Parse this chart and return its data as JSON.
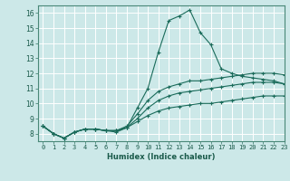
{
  "xlabel": "Humidex (Indice chaleur)",
  "bg_color": "#cce8e8",
  "grid_color": "#b0d0d0",
  "line_color": "#1a6b5a",
  "xlim": [
    -0.5,
    23
  ],
  "ylim": [
    7.5,
    16.5
  ],
  "xticks": [
    0,
    1,
    2,
    3,
    4,
    5,
    6,
    7,
    8,
    9,
    10,
    11,
    12,
    13,
    14,
    15,
    16,
    17,
    18,
    19,
    20,
    21,
    22,
    23
  ],
  "yticks": [
    8,
    9,
    10,
    11,
    12,
    13,
    14,
    15,
    16
  ],
  "series": [
    [
      8.5,
      8.0,
      7.7,
      8.1,
      8.3,
      8.3,
      8.2,
      8.1,
      8.4,
      9.7,
      11.0,
      13.4,
      15.5,
      15.8,
      16.2,
      14.7,
      13.9,
      12.3,
      12.0,
      11.8,
      11.7,
      11.6,
      11.5,
      11.3
    ],
    [
      8.5,
      8.0,
      7.7,
      8.1,
      8.3,
      8.3,
      8.2,
      8.2,
      8.5,
      9.3,
      10.2,
      10.8,
      11.1,
      11.3,
      11.5,
      11.5,
      11.6,
      11.7,
      11.8,
      11.9,
      12.0,
      12.0,
      12.0,
      11.9
    ],
    [
      8.5,
      8.0,
      7.7,
      8.1,
      8.3,
      8.3,
      8.2,
      8.2,
      8.4,
      9.0,
      9.7,
      10.2,
      10.5,
      10.7,
      10.8,
      10.9,
      11.0,
      11.1,
      11.2,
      11.3,
      11.4,
      11.4,
      11.4,
      11.3
    ],
    [
      8.5,
      8.0,
      7.7,
      8.1,
      8.3,
      8.3,
      8.2,
      8.2,
      8.4,
      8.8,
      9.2,
      9.5,
      9.7,
      9.8,
      9.9,
      10.0,
      10.0,
      10.1,
      10.2,
      10.3,
      10.4,
      10.5,
      10.5,
      10.5
    ]
  ]
}
